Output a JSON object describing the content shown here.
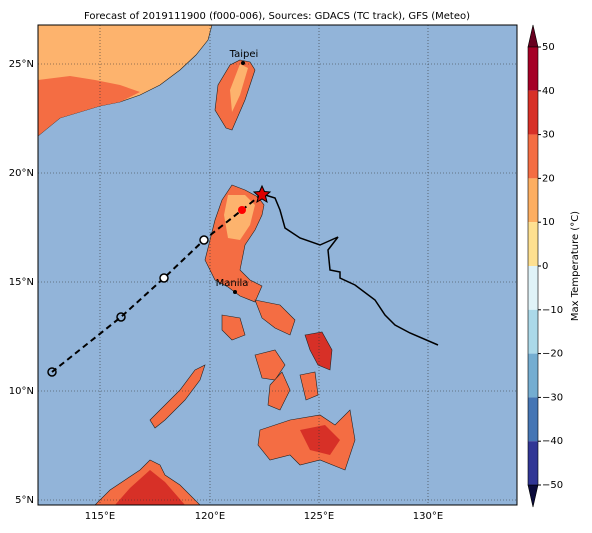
{
  "title": "Forecast of 2019111900 (f000-006), Sources: GDACS (TC track), GFS (Meteo)",
  "lat_labels": [
    "25°N",
    "20°N",
    "15°N",
    "10°N",
    "5°N"
  ],
  "lon_labels": [
    "115°E",
    "120°E",
    "125°E",
    "130°E"
  ],
  "places": [
    {
      "label": "Taipei"
    },
    {
      "label": "Manila"
    }
  ],
  "colorbar": {
    "label": "Max Temperature (°C)",
    "ticks": [
      "50",
      "40",
      "30",
      "20",
      "10",
      "0",
      "−10",
      "−20",
      "−30",
      "−40",
      "−50"
    ]
  }
}
